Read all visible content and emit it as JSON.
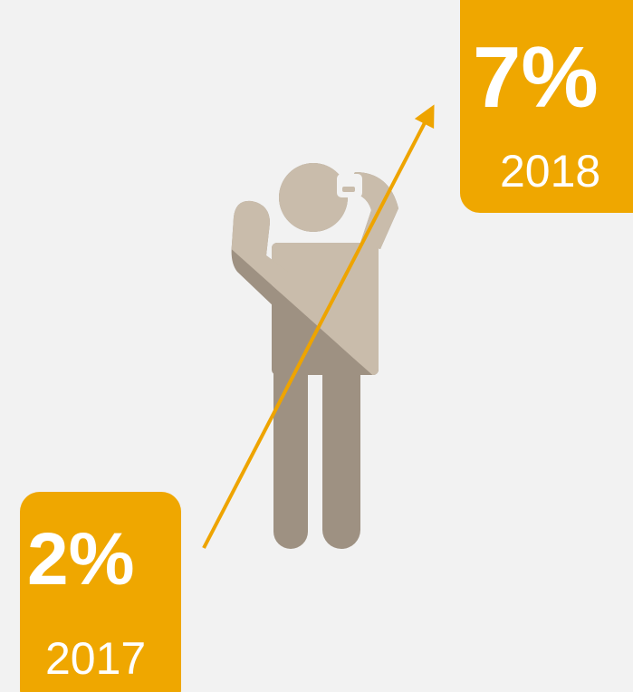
{
  "badges": [
    {
      "value": "2%",
      "year": "2017"
    },
    {
      "value": "7%",
      "year": "2018"
    }
  ]
}
